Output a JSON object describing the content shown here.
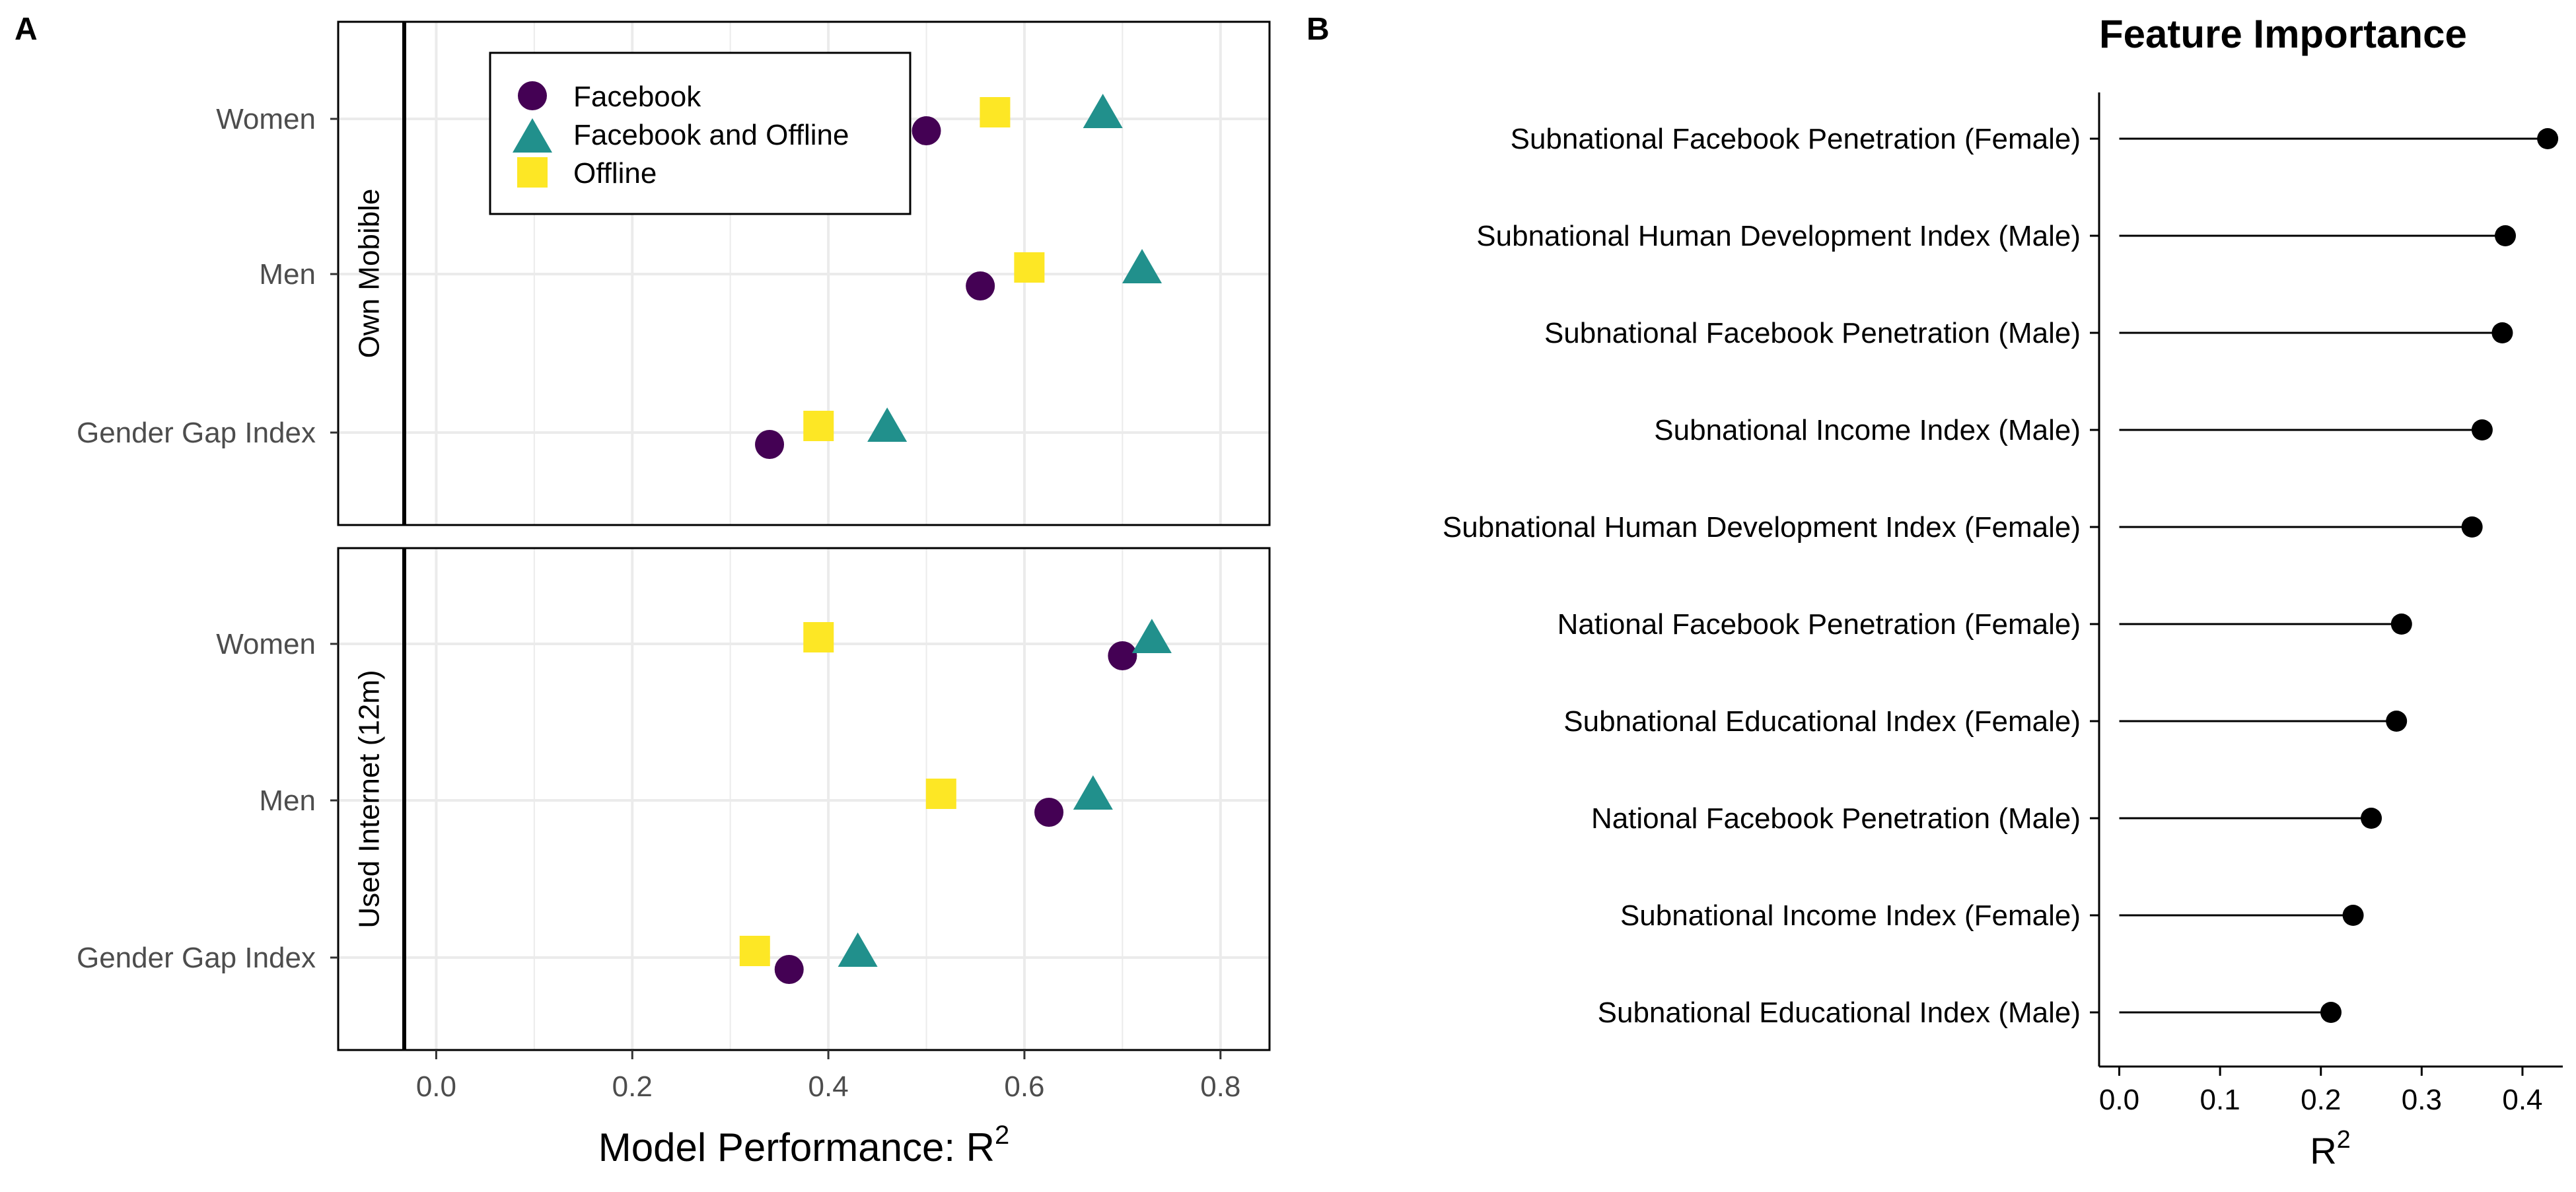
{
  "chart_data": [
    {
      "type": "scatter",
      "panel_label": "A",
      "xlabel": "Model Performance: R",
      "xlabel_superscript": "2",
      "xlim": [
        -0.1,
        0.85
      ],
      "x_ticks": [
        0.0,
        0.2,
        0.4,
        0.6,
        0.8
      ],
      "x_tick_labels": [
        "0.0",
        "0.2",
        "0.4",
        "0.6",
        "0.8"
      ],
      "categories": [
        "Women",
        "Men",
        "Gender Gap Index"
      ],
      "grid": true,
      "legend": {
        "position": "top-left inside panel",
        "entries": [
          {
            "label": "Facebook",
            "color": "#440154",
            "shape": "circle"
          },
          {
            "label": "Facebook and Offline",
            "color": "#21908C",
            "shape": "triangle"
          },
          {
            "label": "Offline",
            "color": "#FDE725",
            "shape": "square"
          }
        ]
      },
      "facets": [
        {
          "strip_label": "Own Mobible",
          "series": [
            {
              "name": "Facebook",
              "values": [
                0.5,
                0.555,
                0.34
              ]
            },
            {
              "name": "Facebook and Offline",
              "values": [
                0.68,
                0.72,
                0.46
              ]
            },
            {
              "name": "Offline",
              "values": [
                0.57,
                0.605,
                0.39
              ]
            }
          ]
        },
        {
          "strip_label": "Used Internet (12m)",
          "series": [
            {
              "name": "Facebook",
              "values": [
                0.7,
                0.625,
                0.36
              ]
            },
            {
              "name": "Facebook and Offline",
              "values": [
                0.73,
                0.67,
                0.43
              ]
            },
            {
              "name": "Offline",
              "values": [
                0.39,
                0.515,
                0.325
              ]
            }
          ]
        }
      ]
    },
    {
      "type": "lollipop",
      "panel_label": "B",
      "title": "Feature Importance",
      "xlabel": "R",
      "xlabel_superscript": "2",
      "xlim": [
        -0.02,
        0.44
      ],
      "x_ticks": [
        0.0,
        0.1,
        0.2,
        0.3,
        0.4
      ],
      "x_tick_labels": [
        "0.0",
        "0.1",
        "0.2",
        "0.3",
        "0.4"
      ],
      "grid": false,
      "categories": [
        "Subnational Facebook Penetration (Female)",
        "Subnational Human Development Index (Male)",
        "Subnational Facebook Penetration (Male)",
        "Subnational Income Index (Male)",
        "Subnational Human Development Index (Female)",
        "National Facebook Penetration (Female)",
        "Subnational Educational Index (Female)",
        "National Facebook Penetration (Male)",
        "Subnational Income Index (Female)",
        "Subnational Educational Index (Male)"
      ],
      "values": [
        0.425,
        0.383,
        0.38,
        0.36,
        0.35,
        0.28,
        0.275,
        0.25,
        0.232,
        0.21
      ]
    }
  ]
}
